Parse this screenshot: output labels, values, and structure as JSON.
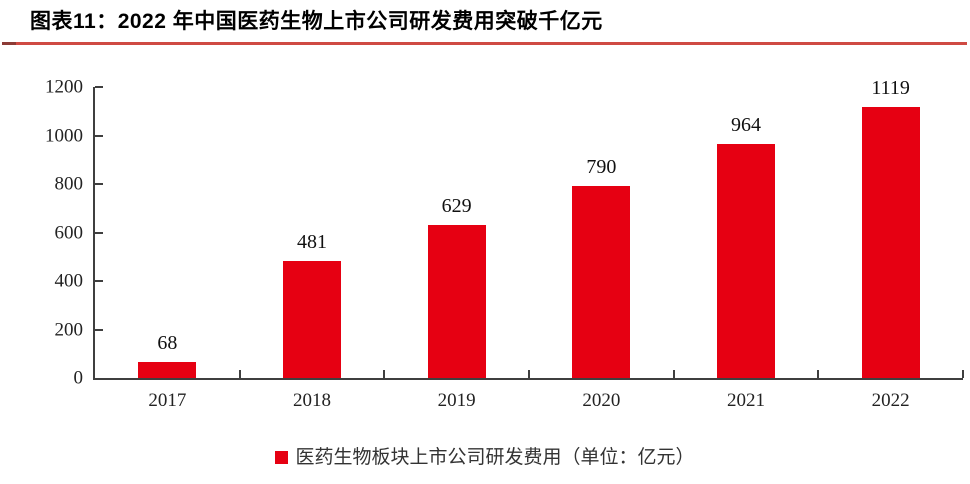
{
  "header": {
    "title": "图表11：2022 年中国医药生物上市公司研发费用突破千亿元"
  },
  "chart_data": {
    "type": "bar",
    "title": "图表11：2022 年中国医药生物上市公司研发费用突破千亿元",
    "categories": [
      "2017",
      "2018",
      "2019",
      "2020",
      "2021",
      "2022"
    ],
    "values": [
      68,
      481,
      629,
      790,
      964,
      1119
    ],
    "series_name": "医药生物板块上市公司研发费用（单位：亿元）",
    "xlabel": "",
    "ylabel": "",
    "ylim": [
      0,
      1200
    ],
    "yticks": [
      0,
      200,
      400,
      600,
      800,
      1000,
      1200
    ],
    "grid": false,
    "legend_position": "bottom",
    "data_labels": true
  },
  "legend": {
    "label": "医药生物板块上市公司研发费用（单位：亿元）"
  },
  "colors": {
    "bar": "#e60012",
    "title_rule": "#cf4a43",
    "title_rule_cap": "#8d3b36",
    "axis": "#3f3f3f"
  }
}
